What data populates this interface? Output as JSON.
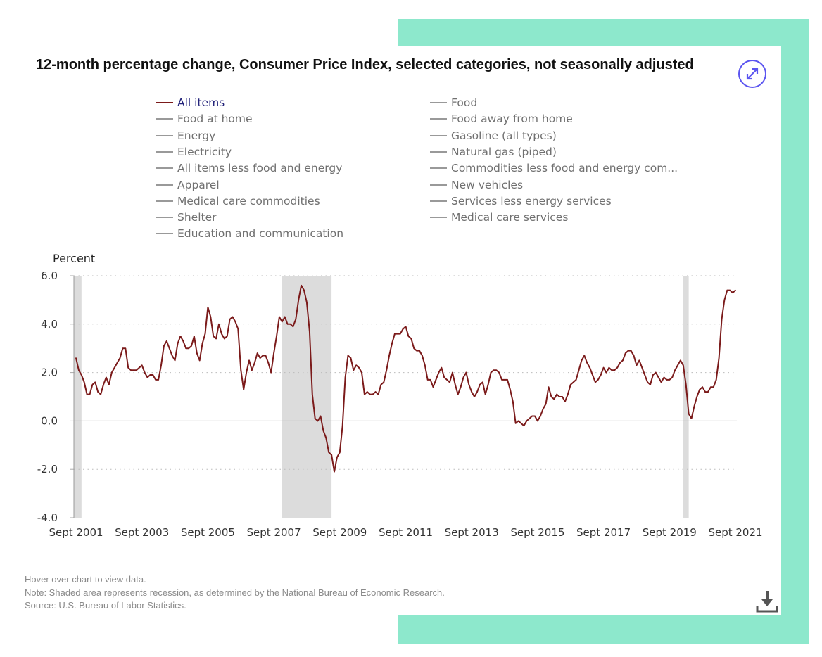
{
  "title": "12-month percentage change, Consumer Price Index, selected categories, not seasonally adjusted",
  "icons": {
    "expand": "expand-arrows-icon",
    "download": "download-icon"
  },
  "colors": {
    "active_series": "#7b1a1a",
    "active_legend_text": "#23237a",
    "inactive": "#999999",
    "recession_shade": "#dcdcdc",
    "accent": "#5b55f0",
    "frame": "#8de8cc"
  },
  "legend": {
    "left": [
      "All items",
      "Food at home",
      "Energy",
      "Electricity",
      "All items less food and energy",
      "Apparel",
      "Medical care commodities",
      "Shelter",
      "Education and communication"
    ],
    "right": [
      "Food",
      "Food away from home",
      "Gasoline (all types)",
      "Natural gas (piped)",
      "Commodities less food and energy com...",
      "New vehicles",
      "Services less energy services",
      "Medical care services"
    ]
  },
  "chart_data": {
    "type": "line",
    "ylabel": "Percent",
    "ylim": [
      -4.0,
      6.0
    ],
    "yticks": [
      "6.0",
      "4.0",
      "2.0",
      "0.0",
      "-2.0",
      "-4.0"
    ],
    "ytick_values": [
      6,
      4,
      2,
      0,
      -2,
      -4
    ],
    "xticks": [
      "Sept 2001",
      "Sept 2003",
      "Sept 2005",
      "Sept 2007",
      "Sept 2009",
      "Sept 2011",
      "Sept 2013",
      "Sept 2015",
      "Sept 2017",
      "Sept 2019",
      "Sept 2021"
    ],
    "x_start": "2001-09",
    "x_end": "2021-09",
    "grid": "horizontal dotted",
    "recessions": [
      [
        "2001-03",
        "2001-11"
      ],
      [
        "2007-12",
        "2009-06"
      ],
      [
        "2020-02",
        "2020-04"
      ]
    ],
    "series": [
      {
        "name": "All items",
        "start": "2001-09",
        "frequency": "monthly",
        "values": [
          2.6,
          2.1,
          1.9,
          1.6,
          1.1,
          1.1,
          1.5,
          1.6,
          1.2,
          1.1,
          1.5,
          1.8,
          1.5,
          2.0,
          2.2,
          2.4,
          2.6,
          3.0,
          3.0,
          2.2,
          2.1,
          2.1,
          2.1,
          2.2,
          2.3,
          2.0,
          1.8,
          1.9,
          1.9,
          1.7,
          1.7,
          2.3,
          3.1,
          3.3,
          3.0,
          2.7,
          2.5,
          3.2,
          3.5,
          3.3,
          3.0,
          3.0,
          3.1,
          3.5,
          2.8,
          2.5,
          3.2,
          3.6,
          4.7,
          4.3,
          3.5,
          3.4,
          4.0,
          3.6,
          3.4,
          3.5,
          4.2,
          4.3,
          4.1,
          3.8,
          2.1,
          1.3,
          2.0,
          2.5,
          2.1,
          2.4,
          2.8,
          2.6,
          2.7,
          2.7,
          2.4,
          2.0,
          2.8,
          3.5,
          4.3,
          4.1,
          4.3,
          4.0,
          4.0,
          3.9,
          4.2,
          5.0,
          5.6,
          5.4,
          4.9,
          3.7,
          1.1,
          0.1,
          0.0,
          0.2,
          -0.4,
          -0.7,
          -1.3,
          -1.4,
          -2.1,
          -1.5,
          -1.3,
          -0.2,
          1.8,
          2.7,
          2.6,
          2.1,
          2.3,
          2.2,
          2.0,
          1.1,
          1.2,
          1.1,
          1.1,
          1.2,
          1.1,
          1.5,
          1.6,
          2.1,
          2.7,
          3.2,
          3.6,
          3.6,
          3.6,
          3.8,
          3.9,
          3.5,
          3.4,
          3.0,
          2.9,
          2.9,
          2.7,
          2.3,
          1.7,
          1.7,
          1.4,
          1.7,
          2.0,
          2.2,
          1.8,
          1.7,
          1.6,
          2.0,
          1.5,
          1.1,
          1.4,
          1.8,
          2.0,
          1.5,
          1.2,
          1.0,
          1.2,
          1.5,
          1.6,
          1.1,
          1.5,
          2.0,
          2.1,
          2.1,
          2.0,
          1.7,
          1.7,
          1.7,
          1.3,
          0.8,
          -0.1,
          0.0,
          -0.1,
          -0.2,
          0.0,
          0.1,
          0.2,
          0.2,
          0.0,
          0.2,
          0.5,
          0.7,
          1.4,
          1.0,
          0.9,
          1.1,
          1.0,
          1.0,
          0.8,
          1.1,
          1.5,
          1.6,
          1.7,
          2.1,
          2.5,
          2.7,
          2.4,
          2.2,
          1.9,
          1.6,
          1.7,
          1.9,
          2.2,
          2.0,
          2.2,
          2.1,
          2.1,
          2.2,
          2.4,
          2.5,
          2.8,
          2.9,
          2.9,
          2.7,
          2.3,
          2.5,
          2.2,
          1.9,
          1.6,
          1.5,
          1.9,
          2.0,
          1.8,
          1.6,
          1.8,
          1.7,
          1.7,
          1.8,
          2.1,
          2.3,
          2.5,
          2.3,
          1.5,
          0.3,
          0.1,
          0.6,
          1.0,
          1.3,
          1.4,
          1.2,
          1.2,
          1.4,
          1.4,
          1.7,
          2.6,
          4.2,
          5.0,
          5.4,
          5.4,
          5.3,
          5.4
        ]
      }
    ]
  },
  "footer": {
    "hover": "Hover over chart to view data.",
    "note": "Note: Shaded area represents recession, as determined by the National Bureau of Economic Research.",
    "source": "Source: U.S. Bureau of Labor Statistics."
  }
}
